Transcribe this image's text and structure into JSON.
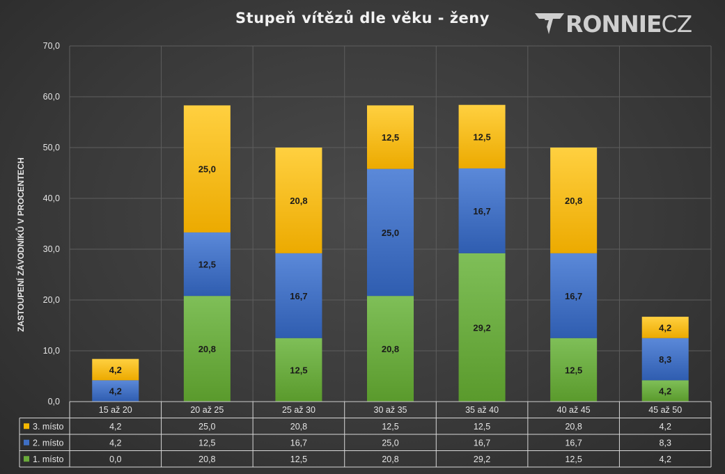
{
  "chart_data": {
    "type": "bar",
    "stacked": true,
    "title": "Stupeň vítězů dle věku - ženy",
    "ylabel": "ZASTOUPENÍ ZÁVODNÍKŮ V PROCENTECH",
    "xlabel": "",
    "ylim": [
      0,
      70
    ],
    "yticks": [
      "0,0",
      "10,0",
      "20,0",
      "30,0",
      "40,0",
      "50,0",
      "60,0",
      "70,0"
    ],
    "grid": true,
    "data_table": true,
    "categories": [
      "15 až 20",
      "20 až 25",
      "25 až 30",
      "30 až 35",
      "35 až 40",
      "40 až 45",
      "45 až 50"
    ],
    "series": [
      {
        "name": "1. místo",
        "values": [
          0.0,
          20.8,
          12.5,
          20.8,
          29.2,
          12.5,
          4.2
        ],
        "labels": [
          "0,0",
          "20,8",
          "12,5",
          "20,8",
          "29,2",
          "12,5",
          "4,2"
        ],
        "color": "#6aaa3a"
      },
      {
        "name": "2. místo",
        "values": [
          4.2,
          12.5,
          16.7,
          25.0,
          16.7,
          16.7,
          8.3
        ],
        "labels": [
          "4,2",
          "12,5",
          "16,7",
          "25,0",
          "16,7",
          "16,7",
          "8,3"
        ],
        "color": "#3f6fc4"
      },
      {
        "name": "3. místo",
        "values": [
          4.2,
          25.0,
          20.8,
          12.5,
          12.5,
          20.8,
          4.2
        ],
        "labels": [
          "4,2",
          "25,0",
          "20,8",
          "12,5",
          "12,5",
          "20,8",
          "4,2"
        ],
        "color": "#f5b800"
      }
    ]
  },
  "logo": {
    "bold": "RONNIE",
    "light": "CZ"
  }
}
